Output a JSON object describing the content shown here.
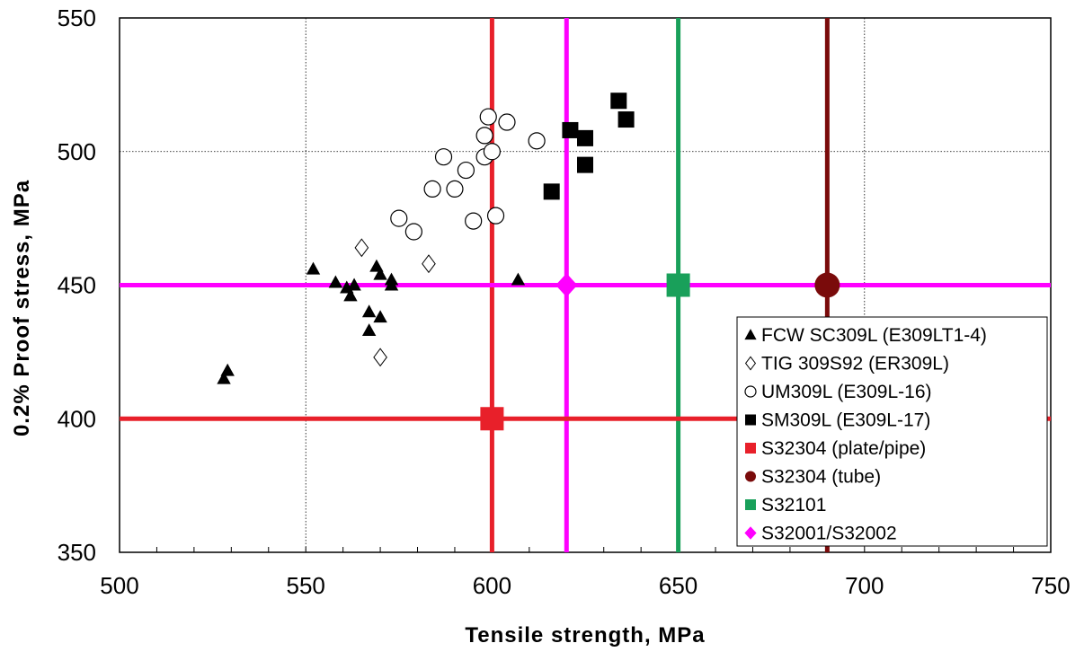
{
  "chart_data": {
    "type": "scatter",
    "xlabel": "Tensile strength, MPa",
    "ylabel": "0.2% Proof stress, MPa",
    "xlim": [
      500,
      750
    ],
    "ylim": [
      350,
      550
    ],
    "xticks": [
      500,
      550,
      600,
      650,
      700,
      750
    ],
    "yticks": [
      350,
      400,
      450,
      500,
      550
    ],
    "grid": true,
    "legend_position": "bottom-right",
    "series": [
      {
        "name": "FCW SC309L (E309LT1-4)",
        "marker": "triangle-filled",
        "color": "#000000",
        "points": [
          [
            528,
            415
          ],
          [
            529,
            418
          ],
          [
            552,
            456
          ],
          [
            558,
            451
          ],
          [
            561,
            449
          ],
          [
            562,
            446
          ],
          [
            563,
            450
          ],
          [
            567,
            440
          ],
          [
            567,
            433
          ],
          [
            569,
            457
          ],
          [
            570,
            454
          ],
          [
            570,
            438
          ],
          [
            573,
            452
          ],
          [
            573,
            450
          ],
          [
            607,
            452
          ]
        ]
      },
      {
        "name": "TIG 309S92 (ER309L)",
        "marker": "diamond-open",
        "color": "#000000",
        "points": [
          [
            565,
            464
          ],
          [
            570,
            423
          ],
          [
            583,
            458
          ]
        ]
      },
      {
        "name": "UM309L (E309L-16)",
        "marker": "circle-open",
        "color": "#000000",
        "points": [
          [
            575,
            475
          ],
          [
            579,
            470
          ],
          [
            584,
            486
          ],
          [
            587,
            498
          ],
          [
            590,
            486
          ],
          [
            593,
            493
          ],
          [
            595,
            474
          ],
          [
            598,
            506
          ],
          [
            598,
            498
          ],
          [
            599,
            513
          ],
          [
            600,
            500
          ],
          [
            601,
            476
          ],
          [
            604,
            511
          ],
          [
            612,
            504
          ]
        ]
      },
      {
        "name": "SM309L (E309L-17)",
        "marker": "square-filled",
        "color": "#000000",
        "points": [
          [
            616,
            485
          ],
          [
            621,
            508
          ],
          [
            625,
            505
          ],
          [
            625,
            495
          ],
          [
            634,
            519
          ],
          [
            636,
            512
          ]
        ]
      },
      {
        "name": "S32304 (plate/pipe)",
        "marker": "square-filled",
        "color": "#e8202a",
        "points": [
          [
            600,
            400
          ]
        ]
      },
      {
        "name": "S32304 (tube)",
        "marker": "circle-filled",
        "color": "#7a0b0b",
        "points": [
          [
            690,
            450
          ]
        ]
      },
      {
        "name": "S32101",
        "marker": "square-filled",
        "color": "#19a05a",
        "points": [
          [
            650,
            450
          ]
        ]
      },
      {
        "name": "S32001/S32002",
        "marker": "diamond-filled",
        "color": "#ff00ff",
        "points": [
          [
            620,
            450
          ]
        ]
      }
    ],
    "reference_lines": [
      {
        "orientation": "vertical",
        "value": 600,
        "color": "#e8202a"
      },
      {
        "orientation": "vertical",
        "value": 620,
        "color": "#ff00ff"
      },
      {
        "orientation": "vertical",
        "value": 650,
        "color": "#19a05a"
      },
      {
        "orientation": "vertical",
        "value": 690,
        "color": "#7a0b0b"
      },
      {
        "orientation": "horizontal",
        "value": 450,
        "color": "#ff00ff"
      },
      {
        "orientation": "horizontal",
        "value": 400,
        "color": "#e8202a"
      }
    ]
  }
}
